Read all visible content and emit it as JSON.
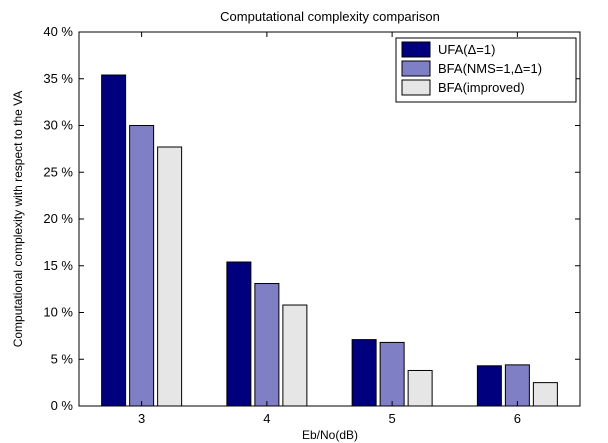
{
  "chart_data": {
    "type": "bar",
    "title": "Computational complexity comparison",
    "xlabel": "Eb/No(dB)",
    "ylabel": "Computational complexity with respect to the VA",
    "categories": [
      "3",
      "4",
      "5",
      "6"
    ],
    "ylim": [
      0,
      40
    ],
    "yticks": [
      0,
      5,
      10,
      15,
      20,
      25,
      30,
      35,
      40
    ],
    "ytick_labels": [
      "0 %",
      "5 %",
      "10 %",
      "15 %",
      "20 %",
      "25 %",
      "30 %",
      "35 %",
      "40 %"
    ],
    "grid": false,
    "legend_position": "top-right",
    "series": [
      {
        "name": "UFA(Δ=1)",
        "color": "#00007f",
        "values": [
          35.4,
          15.4,
          7.1,
          4.3
        ]
      },
      {
        "name": "BFA(NMS=1,Δ=1)",
        "color": "#7f7fc6",
        "values": [
          30.0,
          13.1,
          6.8,
          4.4
        ]
      },
      {
        "name": "BFA(improved)",
        "color": "#e6e6e6",
        "values": [
          27.7,
          10.8,
          3.8,
          2.5
        ]
      }
    ]
  }
}
